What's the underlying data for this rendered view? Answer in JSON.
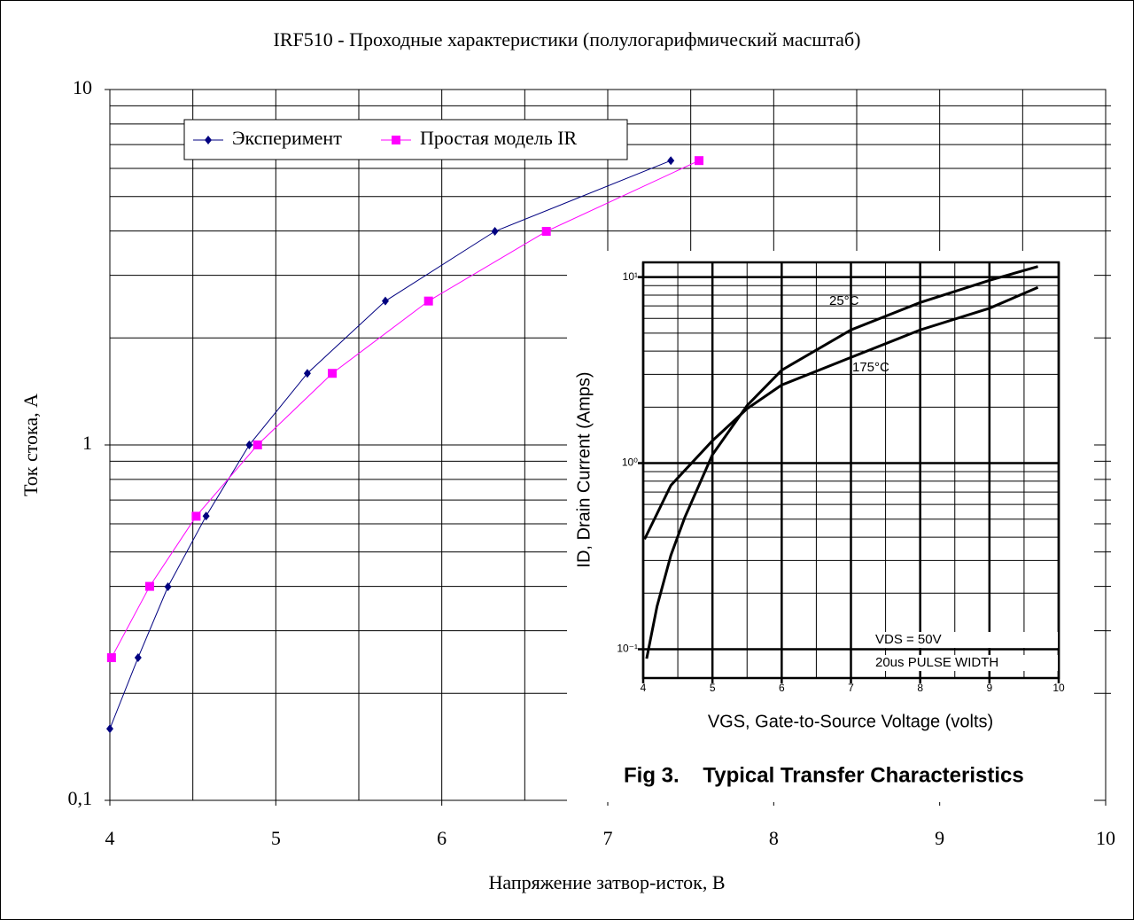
{
  "chart_data": [
    {
      "type": "line",
      "title": "IRF510 - Проходные характеристики (полулогарифмический масштаб)",
      "xlabel": "Напряжение затвор-исток, В",
      "ylabel": "Ток стока, А",
      "xlim": [
        4,
        10
      ],
      "xticks": [
        4,
        5,
        6,
        7,
        8,
        9,
        10
      ],
      "ylim": [
        0.1,
        10
      ],
      "yticks": [
        {
          "value": 0.1,
          "label": "0,1"
        },
        1,
        10
      ],
      "log_y": true,
      "grid": true,
      "legend": "upper left",
      "series": [
        {
          "name": "Эксперимент",
          "color": "#000080",
          "marker": "diamond",
          "x": [
            4.0,
            4.17,
            4.35,
            4.58,
            4.84,
            5.19,
            5.66,
            6.32,
            7.38
          ],
          "values": [
            0.159,
            0.252,
            0.399,
            0.631,
            1,
            1.59,
            2.54,
            3.99,
            6.31
          ]
        },
        {
          "name": "Простая модель IR",
          "color": "#ff00ff",
          "marker": "square",
          "x": [
            4.01,
            4.24,
            4.52,
            4.89,
            5.34,
            5.92,
            6.63,
            7.55
          ],
          "values": [
            0.252,
            0.4,
            0.63,
            1,
            1.59,
            2.54,
            3.99,
            6.31
          ]
        }
      ]
    },
    {
      "type": "line",
      "title": "Fig 3.    Typical Transfer Characteristics",
      "xlabel": "VGS, Gate-to-Source Voltage (volts)",
      "ylabel": "ID, Drain Current (Amps)",
      "xlim": [
        4,
        10
      ],
      "xticks": [
        4,
        5,
        6,
        7,
        8,
        9,
        10
      ],
      "ylim": [
        0.07,
        12
      ],
      "yticks": [
        {
          "value": 0.1,
          "label": "10⁻¹"
        },
        {
          "value": 1,
          "label": "10⁰"
        },
        {
          "value": 10,
          "label": "10¹"
        }
      ],
      "log_y": true,
      "grid": true,
      "annotations": [
        "25°C",
        "175°C",
        "VDS = 50V",
        "20us PULSE WIDTH"
      ],
      "series": [
        {
          "color": "#000000",
          "x": [
            4.05,
            4.2,
            4.4,
            4.6,
            5.0,
            5.5,
            6,
            7,
            8,
            9,
            9.7
          ],
          "values": [
            0.089,
            0.17,
            0.32,
            0.51,
            1.11,
            2.04,
            3.16,
            5.2,
            7.3,
            9.6,
            11.4
          ]
        },
        {
          "color": "#000000",
          "x": [
            4.02,
            4.4,
            5,
            5.5,
            6,
            7,
            8,
            9,
            9.7
          ],
          "values": [
            0.39,
            0.76,
            1.32,
            1.96,
            2.63,
            3.7,
            5.2,
            6.8,
            8.8
          ]
        }
      ]
    }
  ]
}
